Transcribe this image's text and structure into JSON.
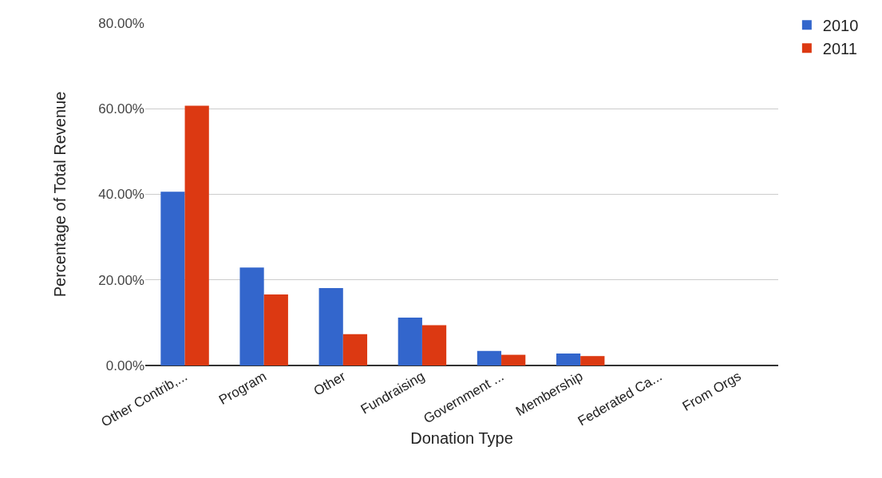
{
  "chart_data": {
    "type": "bar",
    "xlabel": "Donation Type",
    "ylabel": "Percentage of Total Revenue",
    "categories": [
      "Other Contrib,...",
      "Program",
      "Other",
      "Fundraising",
      "Government ...",
      "Membership",
      "Federated Ca...",
      "From Orgs"
    ],
    "series": [
      {
        "name": "2010",
        "color": "#3366cc",
        "values": [
          40.6,
          22.9,
          18.1,
          11.2,
          3.4,
          2.8,
          0,
          0
        ]
      },
      {
        "name": "2011",
        "color": "#dc3912",
        "values": [
          60.7,
          16.6,
          7.3,
          9.4,
          2.5,
          2.2,
          0,
          0
        ]
      }
    ],
    "ylim": [
      0,
      80
    ],
    "yticks": [
      {
        "value": 0,
        "label": "0.00%"
      },
      {
        "value": 20,
        "label": "20.00%"
      },
      {
        "value": 40,
        "label": "40.00%"
      },
      {
        "value": 60,
        "label": "60.00%"
      },
      {
        "value": 80,
        "label": "80.00%"
      }
    ],
    "grid": "y",
    "legend": "top right"
  }
}
